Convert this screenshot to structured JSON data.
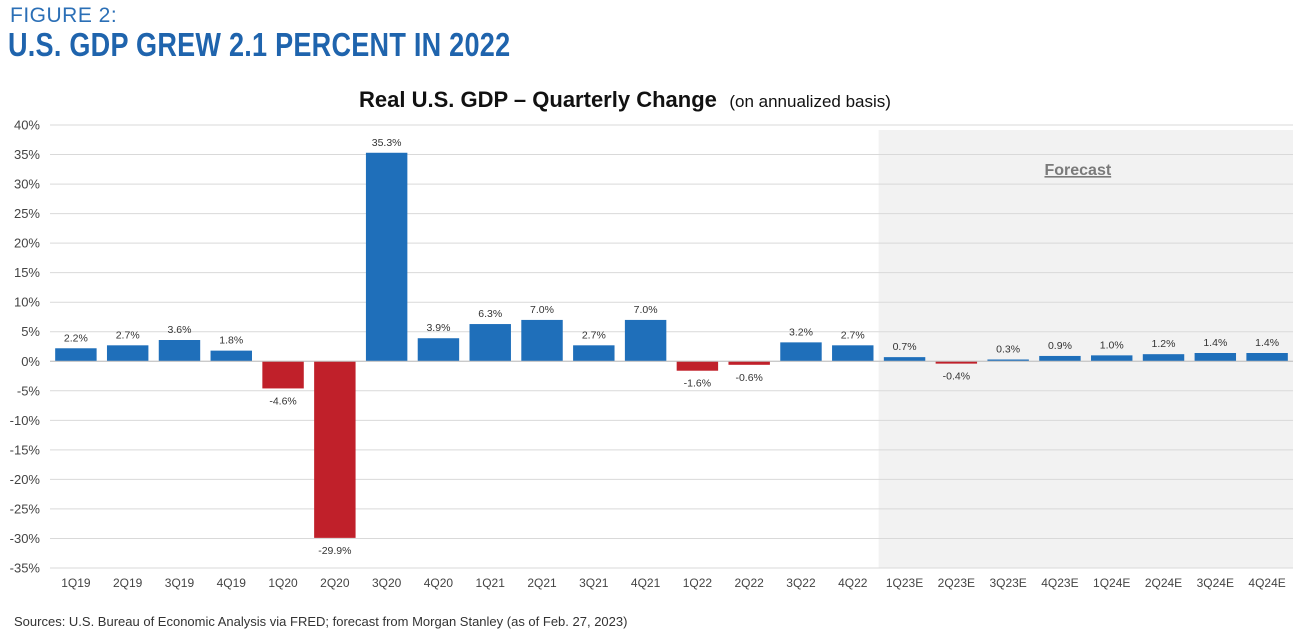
{
  "figure": {
    "label": "FIGURE 2:",
    "title": "U.S. GDP GREW 2.1 PERCENT IN 2022",
    "source": "Sources: U.S. Bureau of Economic Analysis via FRED; forecast from Morgan Stanley (as of Feb. 27, 2023)"
  },
  "chart_data": {
    "type": "bar",
    "title": "Real U.S. GDP – Quarterly Change",
    "subtitle": "(on annualized basis)",
    "xlabel": "",
    "ylabel": "",
    "ylim": [
      -35,
      40
    ],
    "yticks": [
      40,
      35,
      30,
      25,
      20,
      15,
      10,
      5,
      0,
      -5,
      -10,
      -15,
      -20,
      -25,
      -30,
      -35
    ],
    "ytick_labels": [
      "40%",
      "35%",
      "30%",
      "25%",
      "20%",
      "15%",
      "10%",
      "5%",
      "0%",
      "-5%",
      "-10%",
      "-15%",
      "-20%",
      "-25%",
      "-30%",
      "-35%"
    ],
    "grid": true,
    "categories": [
      "1Q19",
      "2Q19",
      "3Q19",
      "4Q19",
      "1Q20",
      "2Q20",
      "3Q20",
      "4Q20",
      "1Q21",
      "2Q21",
      "3Q21",
      "4Q21",
      "1Q22",
      "2Q22",
      "3Q22",
      "4Q22",
      "1Q23E",
      "2Q23E",
      "3Q23E",
      "4Q23E",
      "1Q24E",
      "2Q24E",
      "3Q24E",
      "4Q24E"
    ],
    "values": [
      2.2,
      2.7,
      3.6,
      1.8,
      -4.6,
      -29.9,
      35.3,
      3.9,
      6.3,
      7.0,
      2.7,
      7.0,
      -1.6,
      -0.6,
      3.2,
      2.7,
      0.7,
      -0.4,
      0.3,
      0.9,
      1.0,
      1.2,
      1.4,
      1.4
    ],
    "value_labels": [
      "2.2%",
      "2.7%",
      "3.6%",
      "1.8%",
      "-4.6%",
      "-29.9%",
      "35.3%",
      "3.9%",
      "6.3%",
      "7.0%",
      "2.7%",
      "7.0%",
      "-1.6%",
      "-0.6%",
      "3.2%",
      "2.7%",
      "0.7%",
      "-0.4%",
      "0.3%",
      "0.9%",
      "1.0%",
      "1.2%",
      "1.4%",
      "1.4%"
    ],
    "forecast": {
      "label": "Forecast",
      "start_category": "1Q23E",
      "end_category": "4Q24E",
      "shade_color": "#f2f2f2"
    },
    "colors": {
      "positive": "#1f6fba",
      "negative": "#c0202a",
      "grid": "#d9d9d9"
    }
  }
}
